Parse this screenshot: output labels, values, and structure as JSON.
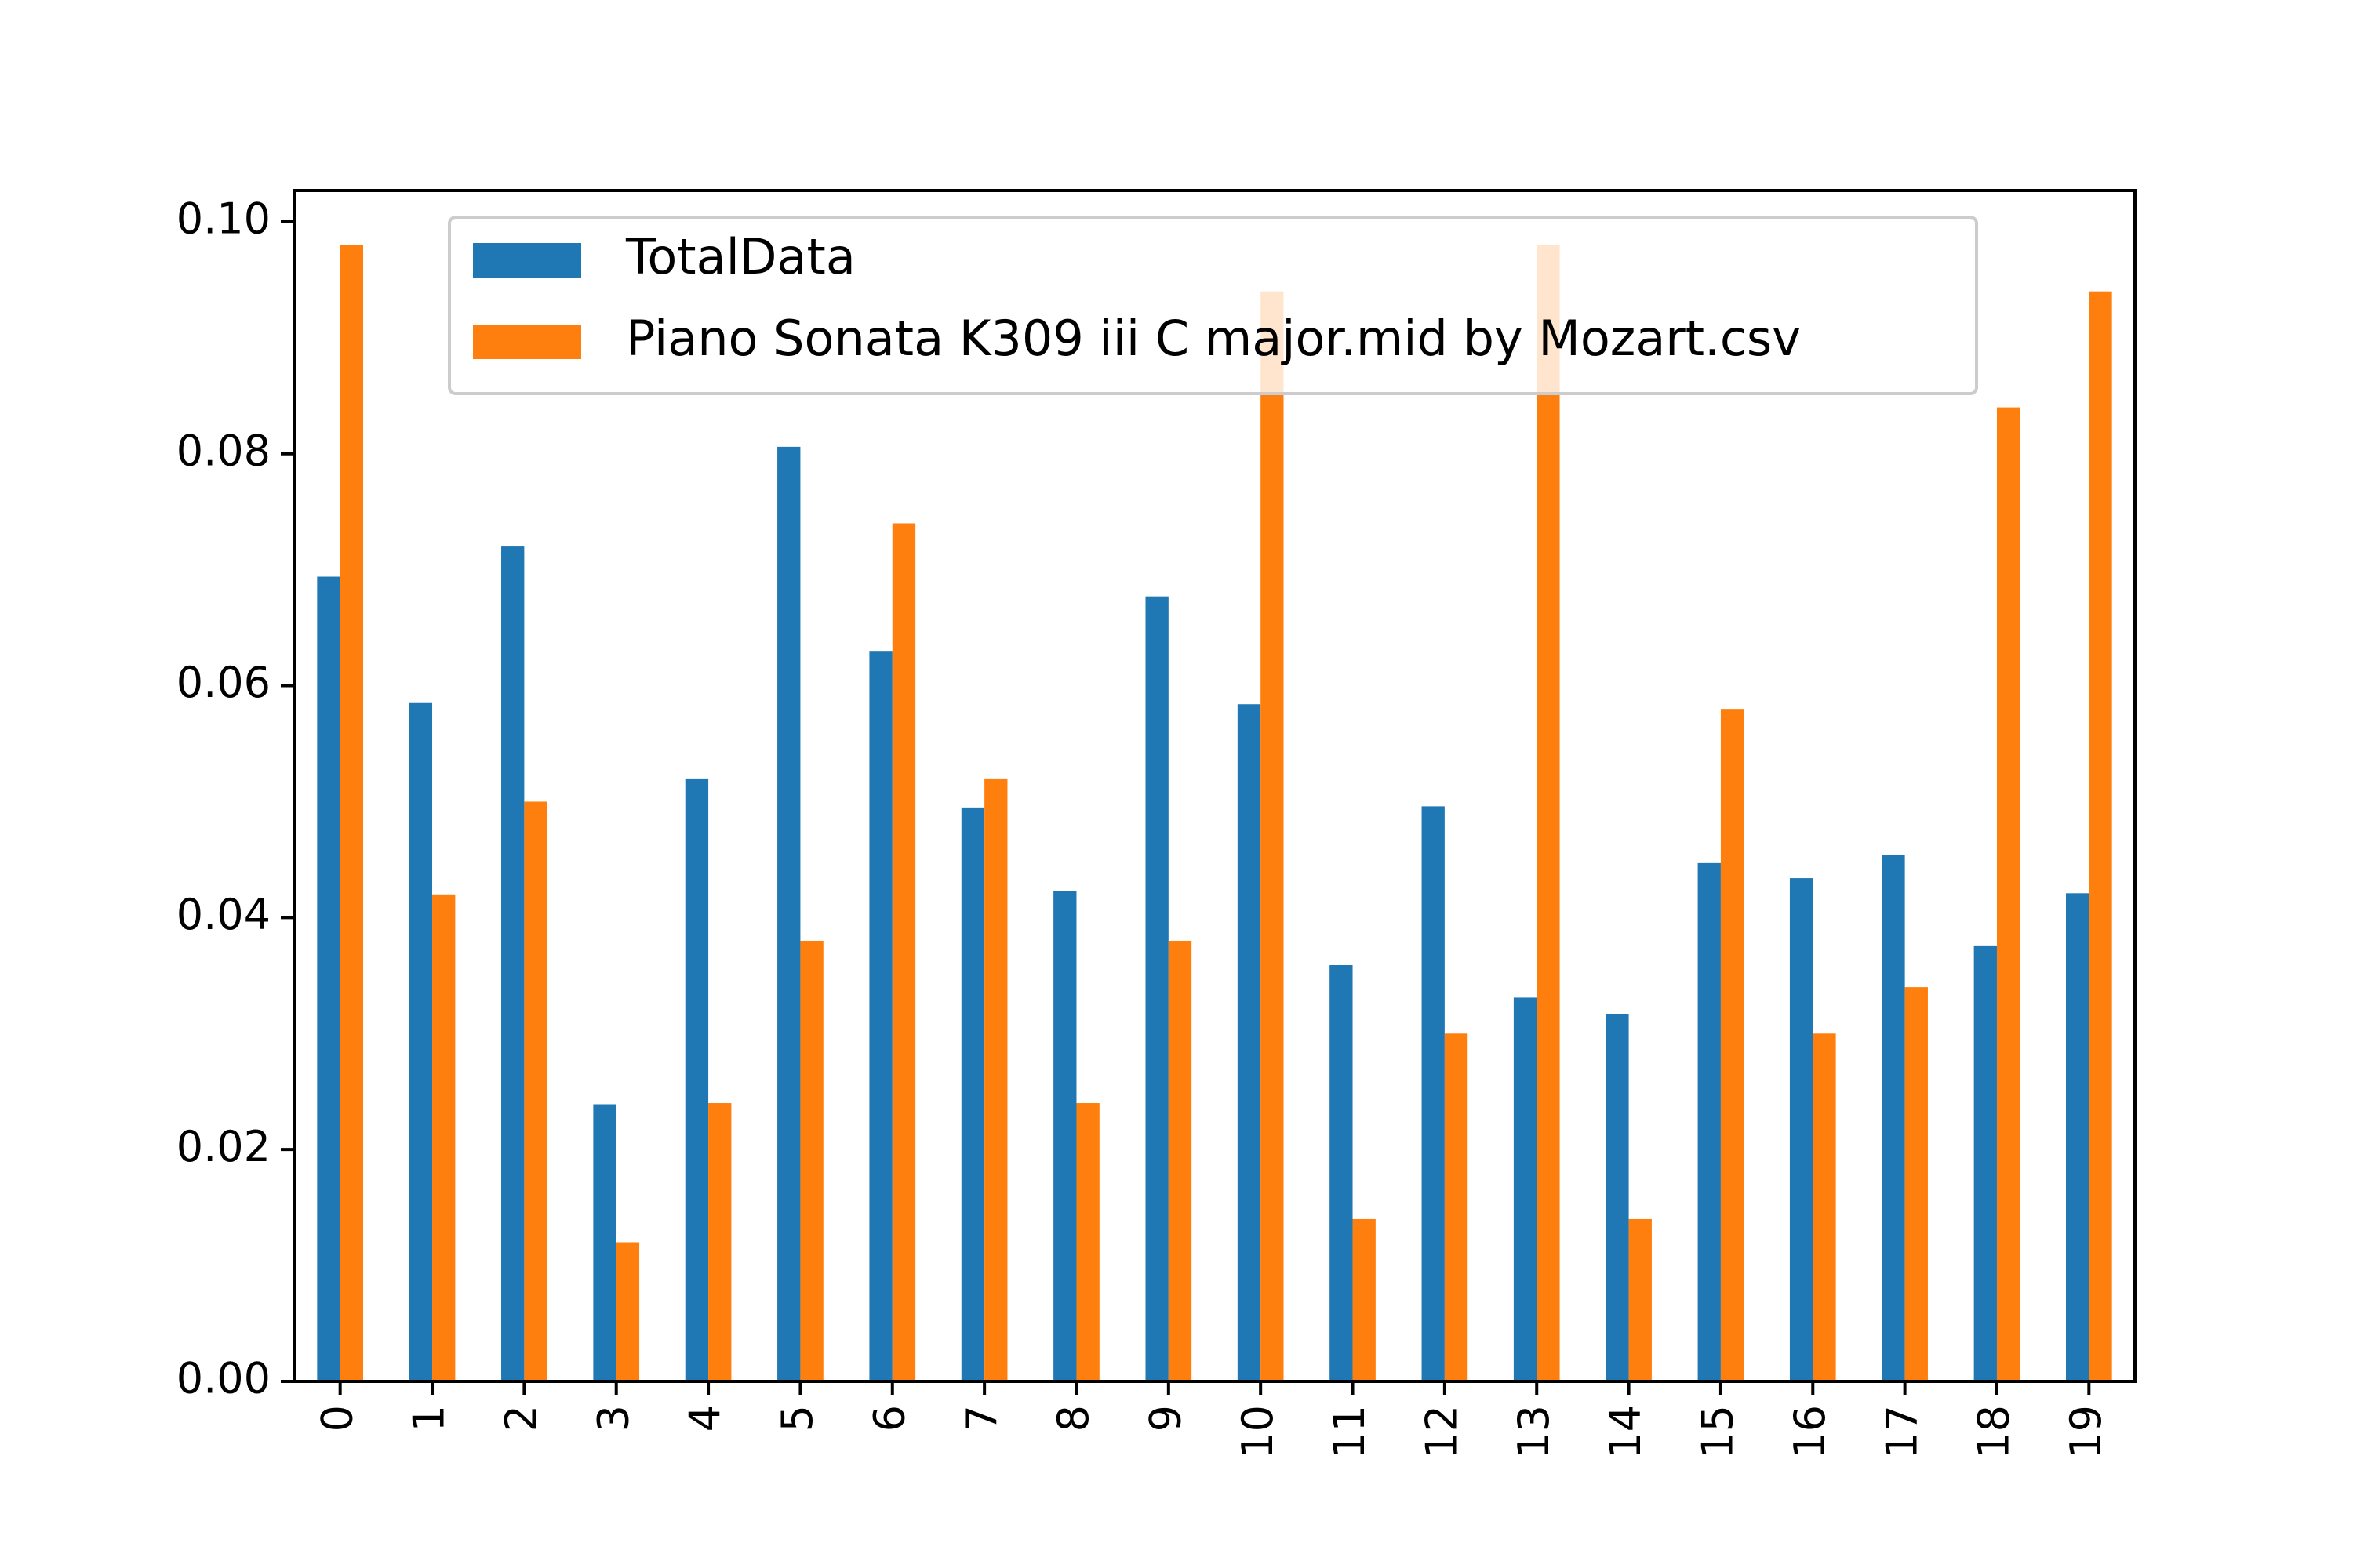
{
  "chart_data": {
    "type": "bar",
    "categories": [
      "0",
      "1",
      "2",
      "3",
      "4",
      "5",
      "6",
      "7",
      "8",
      "9",
      "10",
      "11",
      "12",
      "13",
      "14",
      "15",
      "16",
      "17",
      "18",
      "19"
    ],
    "series": [
      {
        "name": "TotalData",
        "color": "#1f77b4",
        "values": [
          0.0694,
          0.0585,
          0.072,
          0.0239,
          0.052,
          0.0806,
          0.063,
          0.0495,
          0.0423,
          0.0677,
          0.0584,
          0.0359,
          0.0496,
          0.0331,
          0.0317,
          0.0447,
          0.0434,
          0.0454,
          0.0376,
          0.0421
        ]
      },
      {
        "name": "Piano Sonata K309 iii C major.mid by Mozart.csv",
        "color": "#ff7f0e",
        "values": [
          0.098,
          0.042,
          0.05,
          0.012,
          0.024,
          0.038,
          0.074,
          0.052,
          0.024,
          0.038,
          0.094,
          0.014,
          0.03,
          0.098,
          0.014,
          0.058,
          0.03,
          0.034,
          0.084,
          0.094
        ]
      }
    ],
    "yticks": [
      "0.00",
      "0.02",
      "0.04",
      "0.06",
      "0.08",
      "0.10"
    ],
    "ylim": [
      0,
      0.1027
    ],
    "title": "",
    "xlabel": "",
    "ylabel": "",
    "grid": false,
    "legend_position": "top-center"
  }
}
